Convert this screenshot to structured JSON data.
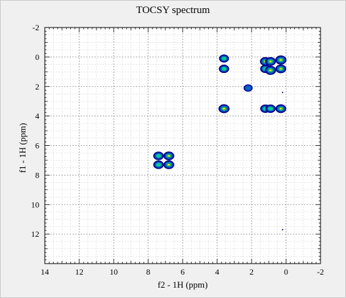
{
  "chart_data": {
    "type": "heatmap",
    "title": "TOCSY spectrum",
    "xlabel": "f2 - 1H (ppm)",
    "ylabel": "f1 - 1H (ppm)",
    "xlim": [
      14,
      -2
    ],
    "ylim": [
      -2,
      14
    ],
    "x_ticks": [
      14,
      12,
      10,
      8,
      6,
      4,
      2,
      0,
      -2
    ],
    "y_ticks": [
      -2,
      0,
      2,
      4,
      6,
      8,
      10,
      12
    ],
    "grid": true,
    "peaks": [
      {
        "x": 3.6,
        "y": 0.1,
        "i": 0.7
      },
      {
        "x": 3.6,
        "y": 0.8,
        "i": 0.8
      },
      {
        "x": 3.6,
        "y": 3.5,
        "i": 0.95
      },
      {
        "x": 1.2,
        "y": 0.3,
        "i": 0.9
      },
      {
        "x": 1.2,
        "y": 0.8,
        "i": 0.8
      },
      {
        "x": 0.9,
        "y": 0.3,
        "i": 0.9
      },
      {
        "x": 0.9,
        "y": 0.9,
        "i": 1.0
      },
      {
        "x": 0.3,
        "y": 0.2,
        "i": 1.0
      },
      {
        "x": 0.3,
        "y": 0.8,
        "i": 0.9
      },
      {
        "x": 1.2,
        "y": 3.5,
        "i": 0.8
      },
      {
        "x": 0.9,
        "y": 3.5,
        "i": 0.8
      },
      {
        "x": 0.3,
        "y": 3.5,
        "i": 0.9
      },
      {
        "x": 2.2,
        "y": 2.1,
        "i": 0.5
      },
      {
        "x": 7.4,
        "y": 6.7,
        "i": 0.85
      },
      {
        "x": 7.4,
        "y": 7.3,
        "i": 0.85
      },
      {
        "x": 6.8,
        "y": 6.7,
        "i": 0.9
      },
      {
        "x": 6.8,
        "y": 7.3,
        "i": 0.9
      },
      {
        "x": 0.2,
        "y": 2.4,
        "i": 0.2
      },
      {
        "x": 0.2,
        "y": 11.7,
        "i": 0.2
      }
    ]
  },
  "colors": {
    "background": "#f0f0f0",
    "plot_bg": "#ffffff",
    "grid": "#b4b4b4",
    "contour_outer": "#00008b",
    "contour_mid": "#0064c8",
    "contour_inner": "#00c8a0",
    "contour_core": "#c8f000"
  }
}
